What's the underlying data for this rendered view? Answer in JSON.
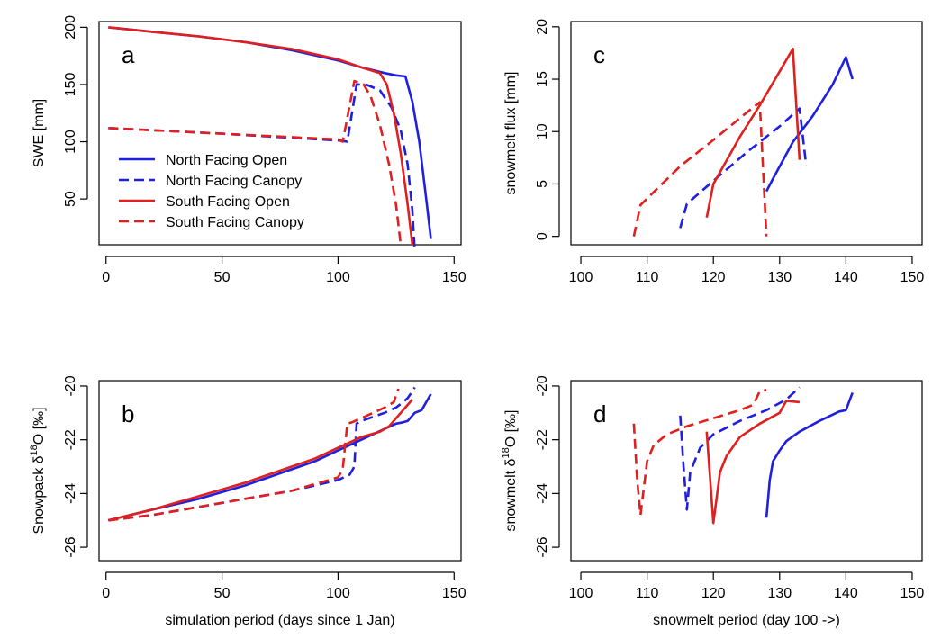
{
  "chart_data": [
    {
      "type": "line",
      "panel_label": "a",
      "xlabel": "",
      "ylabel": "SWE [mm]",
      "xlim": [
        -3,
        153
      ],
      "ylim": [
        10,
        205
      ],
      "xticks": [
        0,
        50,
        100,
        150
      ],
      "yticks": [
        50,
        100,
        150,
        200
      ],
      "legend_position": "left-bottom",
      "series": [
        {
          "name": "North Facing Open",
          "color": "#1f1fe0",
          "dash": "solid",
          "x": [
            1,
            20,
            40,
            60,
            80,
            100,
            110,
            120,
            125,
            129,
            132,
            135,
            138,
            140
          ],
          "y": [
            200,
            196,
            192,
            187,
            180,
            171,
            165,
            160,
            158,
            157,
            135,
            100,
            50,
            15
          ]
        },
        {
          "name": "North Facing Canopy",
          "color": "#1f1fe0",
          "dash": "dashed",
          "x": [
            1,
            50,
            101,
            104,
            108,
            112,
            118,
            123,
            127,
            130,
            132,
            133
          ],
          "y": [
            112,
            107,
            101,
            100,
            150,
            150,
            145,
            130,
            110,
            80,
            40,
            5
          ]
        },
        {
          "name": "South Facing Open",
          "color": "#e01f1f",
          "dash": "solid",
          "x": [
            1,
            20,
            40,
            60,
            80,
            100,
            110,
            118,
            121,
            124,
            127,
            130,
            132
          ],
          "y": [
            200,
            196,
            192,
            187,
            181,
            172,
            165,
            160,
            150,
            125,
            90,
            45,
            10
          ]
        },
        {
          "name": "South Facing Canopy",
          "color": "#e01f1f",
          "dash": "dashed",
          "x": [
            1,
            50,
            100,
            102,
            107,
            111,
            114,
            118,
            122,
            125,
            127
          ],
          "y": [
            112,
            107,
            102,
            100,
            153,
            150,
            140,
            115,
            80,
            45,
            10
          ]
        }
      ]
    },
    {
      "type": "line",
      "panel_label": "b",
      "xlabel": "simulation period (days since 1 Jan)",
      "ylabel_main": "Snowpack δ",
      "ylabel_sup": "18",
      "ylabel_tail": "O [‰]",
      "xlim": [
        -3,
        153
      ],
      "ylim": [
        -26.5,
        -19.8
      ],
      "xticks": [
        0,
        50,
        100,
        150
      ],
      "yticks": [
        -26,
        -24,
        -22,
        -20
      ],
      "series": [
        {
          "name": "North Facing Open",
          "color": "#1f1fe0",
          "dash": "solid",
          "x": [
            1,
            20,
            40,
            60,
            80,
            90,
            100,
            110,
            120,
            125,
            128,
            130,
            133,
            136,
            138,
            140
          ],
          "y": [
            -25,
            -24.6,
            -24.2,
            -23.7,
            -23.1,
            -22.8,
            -22.4,
            -22,
            -21.6,
            -21.4,
            -21.35,
            -21.3,
            -21,
            -20.9,
            -20.6,
            -20.3
          ]
        },
        {
          "name": "North Facing Canopy",
          "color": "#1f1fe0",
          "dash": "dashed",
          "x": [
            1,
            20,
            40,
            60,
            80,
            100,
            105,
            107,
            108,
            110,
            115,
            120,
            125,
            128,
            130,
            132,
            133
          ],
          "y": [
            -25,
            -24.8,
            -24.5,
            -24.2,
            -23.9,
            -23.5,
            -23.3,
            -23,
            -21.4,
            -21.3,
            -21.15,
            -21,
            -20.8,
            -20.6,
            -20.45,
            -20.2,
            -20.05
          ]
        },
        {
          "name": "South Facing Open",
          "color": "#e01f1f",
          "dash": "solid",
          "x": [
            1,
            20,
            40,
            60,
            80,
            90,
            100,
            110,
            118,
            122,
            125,
            128,
            130,
            132
          ],
          "y": [
            -25,
            -24.6,
            -24.1,
            -23.6,
            -23,
            -22.7,
            -22.3,
            -21.9,
            -21.7,
            -21.5,
            -21.2,
            -20.9,
            -20.7,
            -20.5
          ]
        },
        {
          "name": "South Facing Canopy",
          "color": "#e01f1f",
          "dash": "dashed",
          "x": [
            1,
            20,
            40,
            60,
            80,
            100,
            102,
            104,
            106,
            110,
            115,
            120,
            124,
            126
          ],
          "y": [
            -25,
            -24.8,
            -24.5,
            -24.2,
            -23.9,
            -23.4,
            -23.1,
            -21.4,
            -21.35,
            -21.2,
            -21,
            -20.8,
            -20.6,
            -20.1
          ]
        }
      ]
    },
    {
      "type": "line",
      "panel_label": "c",
      "xlabel": "",
      "ylabel": "snowmelt flux [mm]",
      "xlim": [
        98.5,
        151.5
      ],
      "ylim": [
        -0.8,
        20.5
      ],
      "xticks": [
        100,
        110,
        120,
        130,
        140,
        150
      ],
      "yticks": [
        0,
        5,
        10,
        15,
        20
      ],
      "series": [
        {
          "name": "North Facing Open",
          "color": "#1f1fe0",
          "dash": "solid",
          "x": [
            128,
            129,
            132,
            135,
            138,
            140,
            141
          ],
          "y": [
            4.3,
            5.5,
            9,
            11.5,
            14.5,
            17.1,
            15
          ]
        },
        {
          "name": "North Facing Canopy",
          "color": "#1f1fe0",
          "dash": "dashed",
          "x": [
            115,
            116,
            120,
            125,
            130,
            133,
            134
          ],
          "y": [
            0.8,
            3.1,
            5.3,
            8,
            10.5,
            12.2,
            6.8
          ]
        },
        {
          "name": "South Facing Open",
          "color": "#e01f1f",
          "dash": "solid",
          "x": [
            119,
            120,
            124,
            127,
            132,
            133
          ],
          "y": [
            1.8,
            5,
            9.5,
            12.5,
            17.9,
            7.3
          ]
        },
        {
          "name": "South Facing Canopy",
          "color": "#e01f1f",
          "dash": "dashed",
          "x": [
            108,
            109,
            115,
            120,
            125,
            127,
            128
          ],
          "y": [
            0,
            3,
            6.7,
            9.2,
            11.8,
            12.8,
            0
          ]
        }
      ]
    },
    {
      "type": "line",
      "panel_label": "d",
      "xlabel": "snowmelt period (day 100 ->)",
      "ylabel_main": "snowmelt δ",
      "ylabel_sup": "18",
      "ylabel_tail": "O [‰]",
      "xlim": [
        98.5,
        151.5
      ],
      "ylim": [
        -26.5,
        -19.8
      ],
      "xticks": [
        100,
        110,
        120,
        130,
        140,
        150
      ],
      "yticks": [
        -26,
        -24,
        -22,
        -20
      ],
      "series": [
        {
          "name": "North Facing Open",
          "color": "#1f1fe0",
          "dash": "solid",
          "x": [
            128,
            128.5,
            129,
            130,
            131,
            133,
            136,
            139,
            140,
            141
          ],
          "y": [
            -24.9,
            -23.5,
            -22.8,
            -22.4,
            -22.05,
            -21.7,
            -21.3,
            -20.95,
            -20.9,
            -20.25
          ]
        },
        {
          "name": "North Facing Canopy",
          "color": "#1f1fe0",
          "dash": "dashed",
          "x": [
            115,
            115.5,
            116,
            116.5,
            118,
            120,
            124,
            128,
            131,
            133
          ],
          "y": [
            -21.1,
            -23,
            -24.6,
            -23.2,
            -22.3,
            -21.8,
            -21.3,
            -20.9,
            -20.5,
            -20.05
          ]
        },
        {
          "name": "South Facing Open",
          "color": "#e01f1f",
          "dash": "solid",
          "x": [
            119,
            120,
            121,
            122,
            124,
            127,
            130,
            131,
            133
          ],
          "y": [
            -21.7,
            -25.1,
            -23.2,
            -22.6,
            -21.9,
            -21.4,
            -21,
            -20.55,
            -20.6
          ]
        },
        {
          "name": "South Facing Canopy",
          "color": "#e01f1f",
          "dash": "dashed",
          "x": [
            108,
            108.5,
            109,
            110,
            111,
            113,
            116,
            120,
            124,
            126,
            127,
            128
          ],
          "y": [
            -21.4,
            -23.5,
            -24.8,
            -22.8,
            -22.2,
            -21.8,
            -21.5,
            -21.2,
            -20.9,
            -20.7,
            -20.2,
            -20.15
          ]
        }
      ]
    }
  ]
}
